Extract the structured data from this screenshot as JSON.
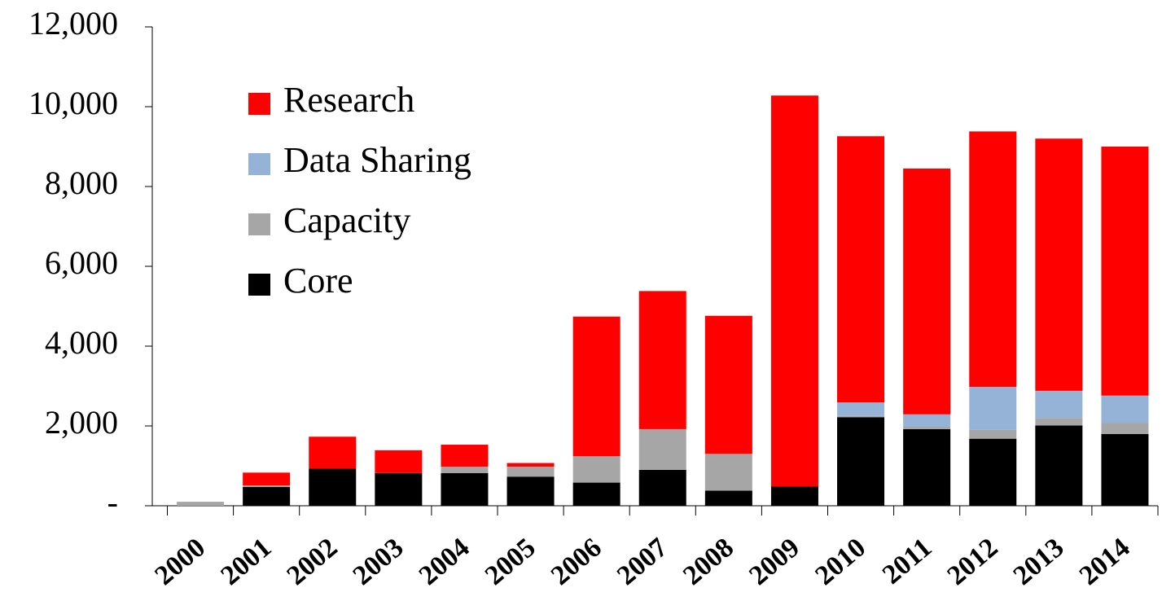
{
  "chart_data": {
    "type": "stacked_bar",
    "categories": [
      "2000",
      "2001",
      "2002",
      "2003",
      "2004",
      "2005",
      "2006",
      "2007",
      "2008",
      "2009",
      "2010",
      "2011",
      "2012",
      "2013",
      "2014"
    ],
    "series": [
      {
        "name": "Core",
        "color": "#000000",
        "values": [
          0,
          470,
          930,
          820,
          820,
          730,
          580,
          900,
          380,
          480,
          2220,
          1920,
          1680,
          2010,
          1800
        ]
      },
      {
        "name": "Capacity",
        "color": "#a6a6a6",
        "values": [
          100,
          40,
          0,
          0,
          160,
          250,
          660,
          1020,
          920,
          0,
          30,
          60,
          220,
          190,
          280
        ]
      },
      {
        "name": "Data Sharing",
        "color": "#95b3d7",
        "values": [
          0,
          0,
          0,
          0,
          0,
          0,
          0,
          0,
          0,
          0,
          340,
          310,
          1080,
          680,
          680
        ]
      },
      {
        "name": "Research",
        "color": "#ff0000",
        "values": [
          0,
          320,
          800,
          570,
          550,
          90,
          3500,
          3460,
          3460,
          9800,
          6670,
          6160,
          6400,
          6320,
          6240
        ]
      }
    ],
    "ylim": [
      0,
      12000
    ],
    "yticks": [
      {
        "value": 0,
        "label": "-"
      },
      {
        "value": 2000,
        "label": "2,000"
      },
      {
        "value": 4000,
        "label": "4,000"
      },
      {
        "value": 6000,
        "label": "6,000"
      },
      {
        "value": 8000,
        "label": "8,000"
      },
      {
        "value": 10000,
        "label": "10,000"
      },
      {
        "value": 12000,
        "label": "12,000"
      }
    ],
    "grid": false,
    "legend": "upper left"
  }
}
